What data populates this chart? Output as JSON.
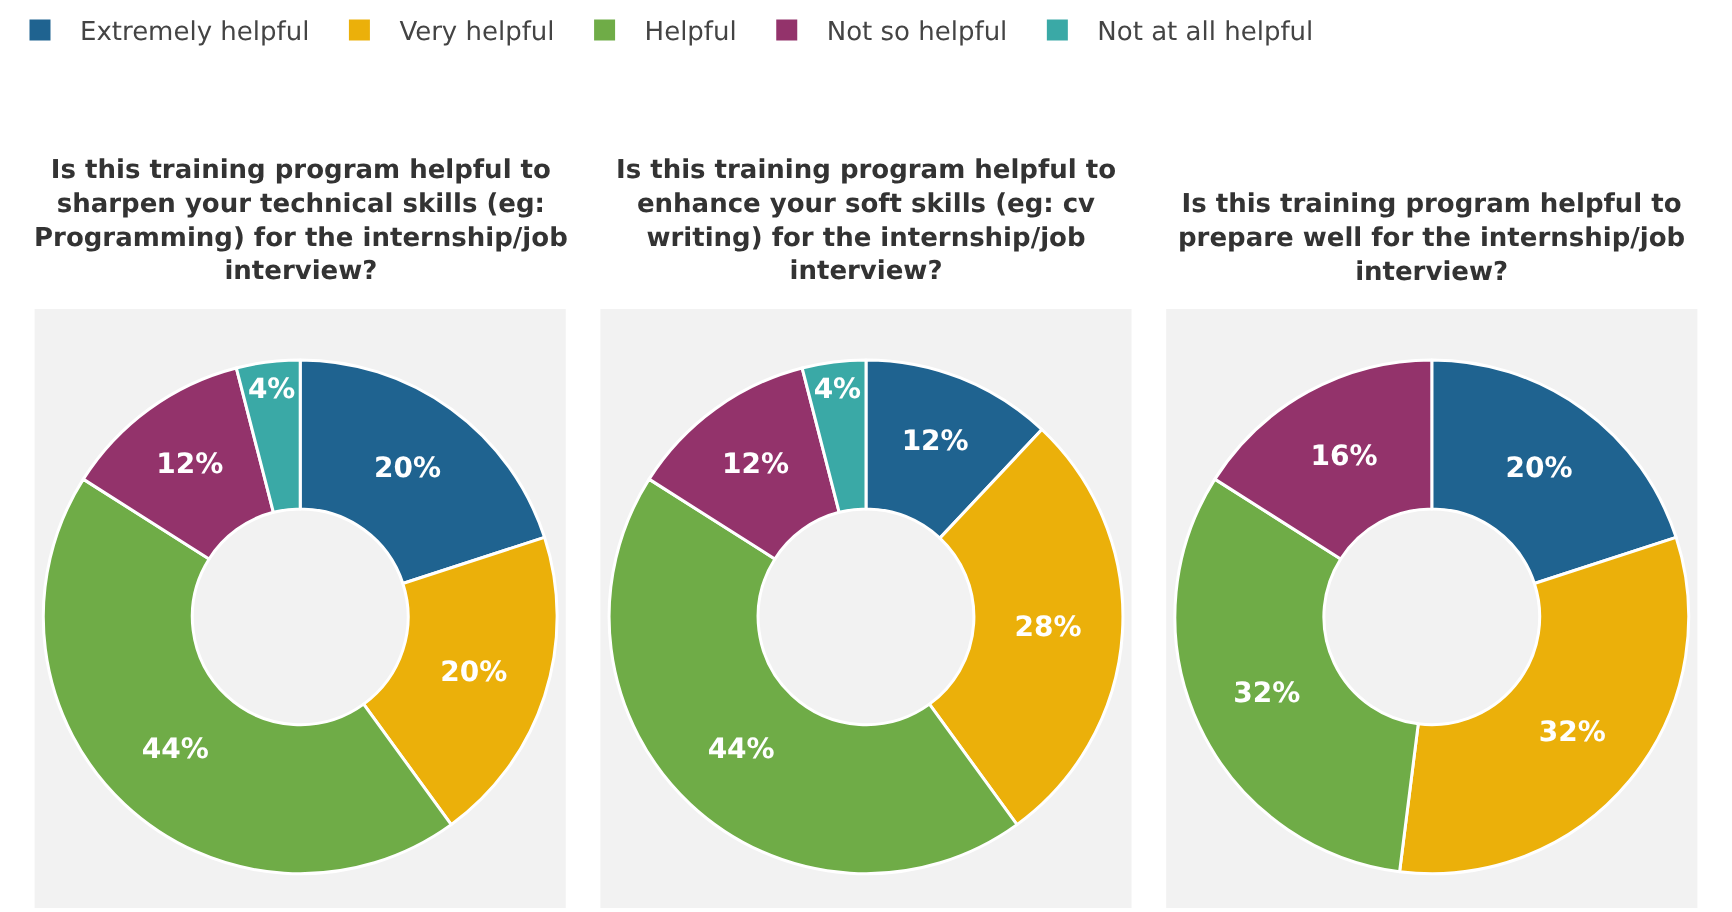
{
  "chart_data": [
    {
      "type": "donut",
      "title": "Is this training program helpful to sharpen your technical skills (eg: Programming) for the internship/job interview?",
      "categories": [
        "Extremely helpful",
        "Very helpful",
        "Helpful",
        "Not so helpful",
        "Not at all helpful"
      ],
      "values": [
        20,
        20,
        44,
        12,
        4
      ],
      "value_labels": [
        "20%",
        "20%",
        "44%",
        "12%",
        "4%"
      ],
      "colors": [
        "#1f6390",
        "#ebb00a",
        "#6fac47",
        "#93336b",
        "#3aa9a6"
      ],
      "legend": "top"
    },
    {
      "type": "donut",
      "title": "Is this training program helpful to enhance your soft skills (eg: cv writing) for the internship/job interview?",
      "categories": [
        null,
        null,
        null,
        null,
        null
      ],
      "values": [
        12,
        28,
        44,
        12,
        4
      ],
      "value_labels": [
        "12%",
        "28%",
        "44%",
        "12%",
        "4%"
      ],
      "colors": [
        "#1f6390",
        "#ebb00a",
        "#6fac47",
        "#93336b",
        "#3aa9a6"
      ]
    },
    {
      "type": "donut",
      "title": "Is this training program helpful to prepare well for the internship/job interview?",
      "categories": [
        null,
        null,
        null,
        null
      ],
      "values": [
        20,
        32,
        32,
        16
      ],
      "value_labels": [
        "20%",
        "32%",
        "32%",
        "16%"
      ],
      "colors": [
        "#1f6390",
        "#ebb00a",
        "#6fac47",
        "#93336b"
      ]
    }
  ]
}
